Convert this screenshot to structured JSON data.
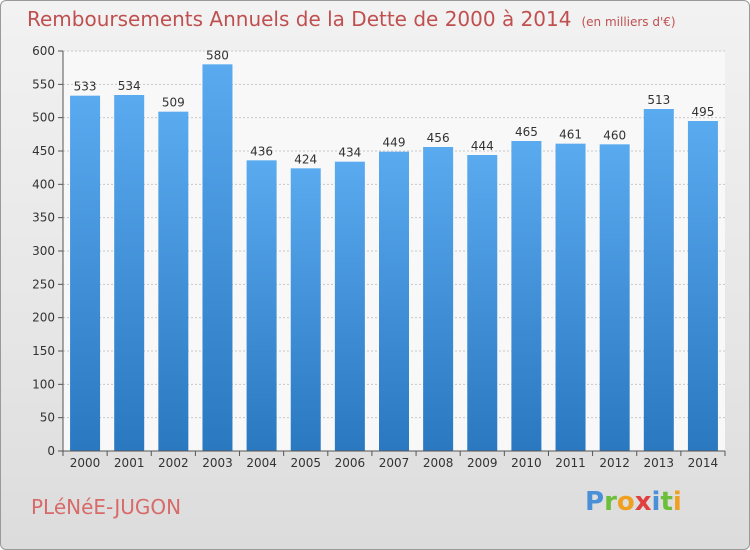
{
  "header": {
    "title": "Remboursements Annuels de la Dette de 2000 à 2014",
    "subtitle": "(en milliers d'€)"
  },
  "footer": {
    "commune": "PLéNéE-JUGON",
    "logo": [
      "P",
      "r",
      "o",
      "x",
      "i",
      "t",
      "i"
    ],
    "logo_colors": [
      "#4a90d9",
      "#6cbf3b",
      "#f0a020",
      "#e04040",
      "#4a90d9",
      "#6cbf3b",
      "#f0a020"
    ]
  },
  "colors": {
    "bar_top": "#5aaaf0",
    "bar_bottom": "#2a78c0",
    "title": "#c05050"
  },
  "chart_data": {
    "type": "bar",
    "title": "Remboursements Annuels de la Dette de 2000 à 2014",
    "subtitle": "(en milliers d'€)",
    "categories": [
      "2000",
      "2001",
      "2002",
      "2003",
      "2004",
      "2005",
      "2006",
      "2007",
      "2008",
      "2009",
      "2010",
      "2011",
      "2012",
      "2013",
      "2014"
    ],
    "values": [
      533,
      534,
      509,
      580,
      436,
      424,
      434,
      449,
      456,
      444,
      465,
      461,
      460,
      513,
      495
    ],
    "data_labels": [
      "533",
      "534",
      "509",
      "580",
      "436",
      "424",
      "434",
      "449",
      "456",
      "444",
      "465",
      "461",
      "460",
      "513",
      "495"
    ],
    "ylim": [
      0,
      600
    ],
    "yticks": [
      0,
      50,
      100,
      150,
      200,
      250,
      300,
      350,
      400,
      450,
      500,
      550,
      600
    ],
    "ytick_labels": [
      "0",
      "50",
      "100",
      "150",
      "200",
      "250",
      "300",
      "350",
      "400",
      "450",
      "500",
      "550",
      "600"
    ],
    "grid": true,
    "legend": "none"
  }
}
